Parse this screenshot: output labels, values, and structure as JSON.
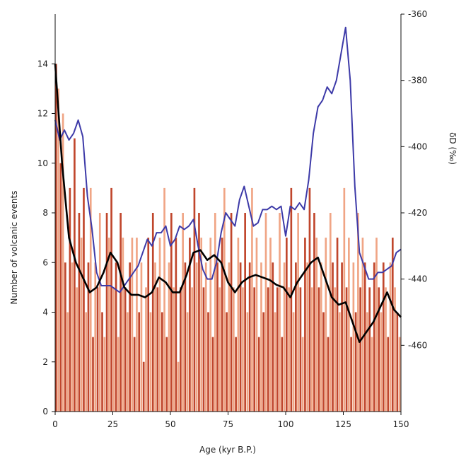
{
  "chart_data": {
    "type": "bar+line",
    "title": "",
    "xlabel": "Age (kyr B.P.)",
    "ylabel_left": "Number of volcanic events",
    "ylabel_right": "δD (‰)",
    "xlim": [
      0,
      150
    ],
    "ylim_left": [
      0,
      16
    ],
    "ylim_right": [
      -360,
      -480
    ],
    "x_ticks": [
      "0",
      "25",
      "50",
      "75",
      "100",
      "125",
      "150"
    ],
    "y_ticks_left": [
      "0",
      "2",
      "4",
      "6",
      "8",
      "10",
      "12",
      "14"
    ],
    "y_ticks_right": [
      "-360",
      "-380",
      "-400",
      "-420",
      "-440",
      "-460"
    ],
    "grid": false,
    "legend": "none",
    "colors": {
      "bar_dark": "#c0462c",
      "bar_light": "#f0a585",
      "deltaD": "#3d3aa8",
      "smooth": "#000000"
    },
    "bars": {
      "name": "",
      "x": [
        0,
        1,
        2,
        3,
        4,
        5,
        6,
        7,
        8,
        9,
        10,
        11,
        12,
        13,
        14,
        15,
        16,
        17,
        18,
        19,
        20,
        21,
        22,
        23,
        24,
        25,
        26,
        27,
        28,
        29,
        30,
        31,
        32,
        33,
        34,
        35,
        36,
        37,
        38,
        39,
        40,
        41,
        42,
        43,
        44,
        45,
        46,
        47,
        48,
        49,
        50,
        51,
        52,
        53,
        54,
        55,
        56,
        57,
        58,
        59,
        60,
        61,
        62,
        63,
        64,
        65,
        66,
        67,
        68,
        69,
        70,
        71,
        72,
        73,
        74,
        75,
        76,
        77,
        78,
        79,
        80,
        81,
        82,
        83,
        84,
        85,
        86,
        87,
        88,
        89,
        90,
        91,
        92,
        93,
        94,
        95,
        96,
        97,
        98,
        99,
        100,
        101,
        102,
        103,
        104,
        105,
        106,
        107,
        108,
        109,
        110,
        111,
        112,
        113,
        114,
        115,
        116,
        117,
        118,
        119,
        120,
        121,
        122,
        123,
        124,
        125,
        126,
        127,
        128,
        129,
        130,
        131,
        132,
        133,
        134,
        135,
        136,
        137,
        138,
        139,
        140,
        141,
        142,
        143,
        144,
        145,
        146,
        147,
        148,
        149
      ],
      "values": [
        14,
        13,
        10,
        12,
        6,
        4,
        9,
        6,
        11,
        5,
        8,
        7,
        9,
        4,
        6,
        9,
        3,
        6,
        5,
        8,
        4,
        3,
        8,
        7,
        9,
        5,
        6,
        3,
        8,
        7,
        5,
        4,
        6,
        7,
        3,
        7,
        4,
        6,
        2,
        5,
        7,
        4,
        8,
        6,
        5,
        7,
        4,
        9,
        3,
        6,
        8,
        5,
        7,
        2,
        5,
        8,
        6,
        4,
        7,
        5,
        9,
        6,
        8,
        7,
        5,
        6,
        4,
        7,
        3,
        8,
        6,
        5,
        7,
        9,
        4,
        6,
        8,
        5,
        3,
        7,
        6,
        5,
        8,
        4,
        6,
        9,
        5,
        7,
        3,
        6,
        4,
        8,
        5,
        7,
        6,
        4,
        5,
        8,
        3,
        6,
        7,
        5,
        9,
        4,
        6,
        8,
        5,
        3,
        7,
        6,
        9,
        5,
        8,
        7,
        5,
        6,
        4,
        7,
        3,
        8,
        6,
        5,
        7,
        4,
        6,
        9,
        5,
        7,
        3,
        6,
        4,
        8,
        5,
        7,
        6,
        4,
        5,
        3,
        6,
        7,
        5,
        4,
        6,
        5,
        3,
        6,
        7,
        5,
        4,
        3
      ]
    },
    "series": [
      {
        "name": "",
        "axis": "right",
        "x": [
          0,
          2,
          4,
          6,
          8,
          10,
          12,
          14,
          16,
          18,
          20,
          22,
          24,
          26,
          28,
          30,
          32,
          34,
          36,
          38,
          40,
          42,
          44,
          46,
          48,
          50,
          52,
          54,
          56,
          58,
          60,
          62,
          64,
          66,
          68,
          70,
          72,
          74,
          76,
          78,
          80,
          82,
          84,
          86,
          88,
          90,
          92,
          94,
          96,
          98,
          100,
          102,
          104,
          106,
          108,
          110,
          112,
          114,
          116,
          118,
          120,
          122,
          124,
          126,
          128,
          130,
          132,
          134,
          136,
          138,
          140,
          142,
          144,
          146,
          148,
          150
        ],
        "values": [
          -392,
          -398,
          -395,
          -398,
          -396,
          -392,
          -397,
          -415,
          -425,
          -438,
          -442,
          -442,
          -442,
          -443,
          -444,
          -442,
          -440,
          -438,
          -436,
          -432,
          -428,
          -430,
          -426,
          -426,
          -424,
          -430,
          -428,
          -424,
          -425,
          -424,
          -422,
          -430,
          -437,
          -440,
          -440,
          -435,
          -426,
          -420,
          -422,
          -424,
          -416,
          -412,
          -418,
          -424,
          -423,
          -419,
          -419,
          -418,
          -419,
          -418,
          -427,
          -418,
          -419,
          -417,
          -419,
          -410,
          -396,
          -388,
          -386,
          -382,
          -384,
          -380,
          -372,
          -364,
          -380,
          -412,
          -432,
          -436,
          -440,
          -440,
          -438,
          -438,
          -437,
          -436,
          -432,
          -431
        ]
      },
      {
        "name": "",
        "axis": "left",
        "x": [
          0,
          3,
          6,
          9,
          12,
          15,
          18,
          21,
          24,
          27,
          30,
          33,
          36,
          39,
          42,
          45,
          48,
          51,
          54,
          57,
          60,
          63,
          66,
          69,
          72,
          75,
          78,
          81,
          84,
          87,
          90,
          93,
          96,
          99,
          102,
          105,
          108,
          111,
          114,
          117,
          120,
          123,
          126,
          129,
          132,
          135,
          138,
          141,
          144,
          147,
          150
        ],
        "values": [
          14,
          10,
          7,
          6,
          5.4,
          4.8,
          5,
          5.6,
          6.4,
          6,
          5,
          4.7,
          4.7,
          4.6,
          4.8,
          5.4,
          5.2,
          4.8,
          4.8,
          5.5,
          6.4,
          6.5,
          6.1,
          6.3,
          6,
          5.2,
          4.8,
          5.2,
          5.4,
          5.5,
          5.4,
          5.3,
          5.1,
          5,
          4.6,
          5.2,
          5.6,
          6,
          6.2,
          5.4,
          4.6,
          4.3,
          4.4,
          3.6,
          2.8,
          3.2,
          3.6,
          4.2,
          4.8,
          4.1,
          3.8
        ]
      }
    ]
  }
}
